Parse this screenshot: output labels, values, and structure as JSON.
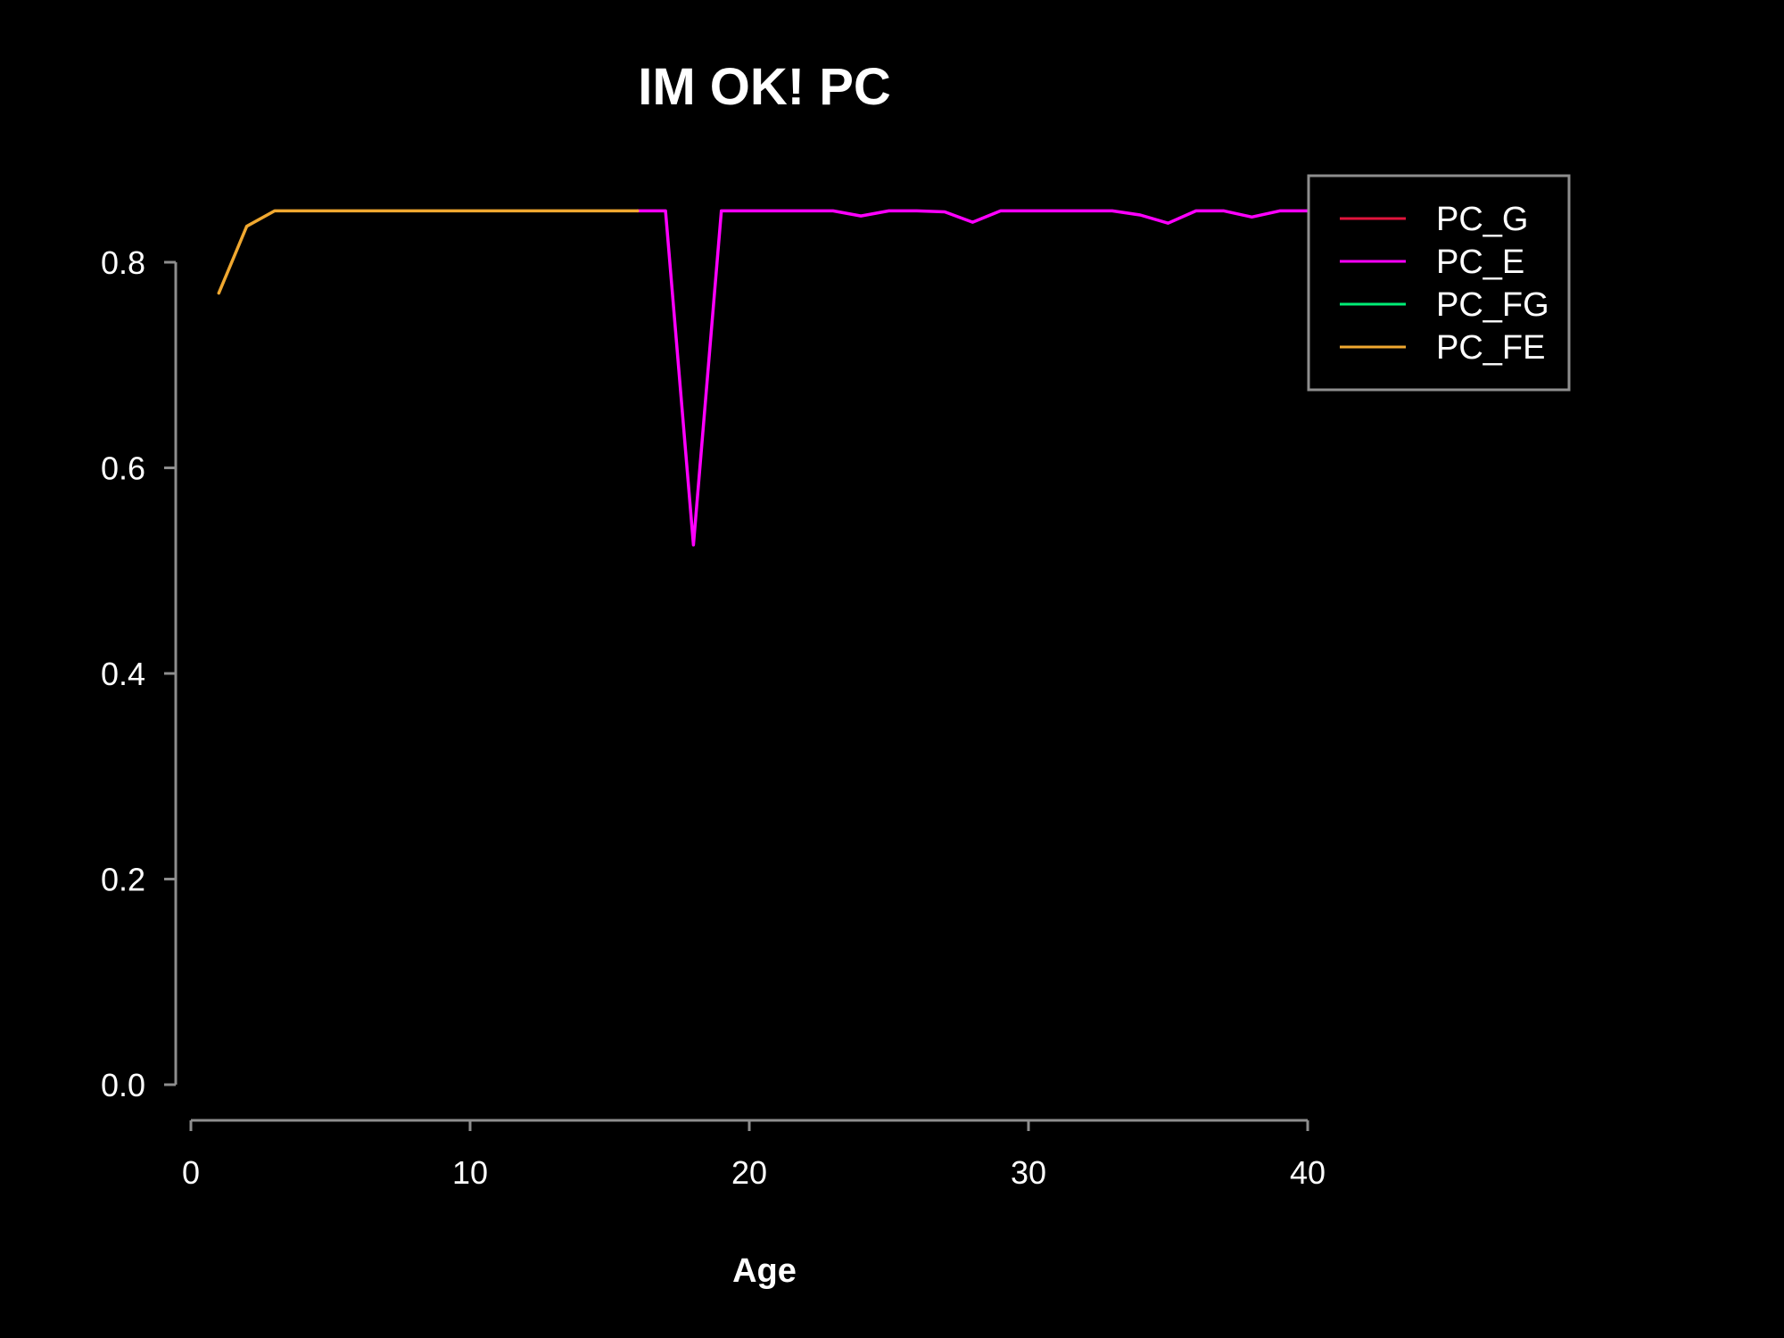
{
  "chart_data": {
    "type": "line",
    "title": "IM OK!  PC",
    "xlabel": "Age",
    "ylabel": "",
    "xlim": [
      0,
      40
    ],
    "ylim": [
      0,
      0.8
    ],
    "x_ticks": [
      "0",
      "10",
      "20",
      "30",
      "40"
    ],
    "y_ticks": [
      "0.0",
      "0.2",
      "0.4",
      "0.6",
      "0.8"
    ],
    "grid": false,
    "legend_position": "top-right",
    "background": "#000000",
    "series": [
      {
        "name": "PC_G",
        "color": "#e0143c",
        "points": []
      },
      {
        "name": "PC_E",
        "color": "#ff00ff",
        "points": [
          [
            16,
            0.85
          ],
          [
            17,
            0.85
          ],
          [
            18,
            0.525
          ],
          [
            19,
            0.85
          ],
          [
            20,
            0.85
          ],
          [
            21,
            0.85
          ],
          [
            22,
            0.85
          ],
          [
            23,
            0.85
          ],
          [
            24,
            0.845
          ],
          [
            25,
            0.85
          ],
          [
            26,
            0.85
          ],
          [
            27,
            0.849
          ],
          [
            28,
            0.839
          ],
          [
            29,
            0.85
          ],
          [
            30,
            0.85
          ],
          [
            31,
            0.85
          ],
          [
            32,
            0.85
          ],
          [
            33,
            0.85
          ],
          [
            34,
            0.846
          ],
          [
            35,
            0.838
          ],
          [
            36,
            0.85
          ],
          [
            37,
            0.85
          ],
          [
            38,
            0.844
          ],
          [
            39,
            0.85
          ],
          [
            40,
            0.85
          ]
        ]
      },
      {
        "name": "PC_FG",
        "color": "#00ee76",
        "points": []
      },
      {
        "name": "PC_FE",
        "color": "#f0a830",
        "points": [
          [
            1,
            0.77
          ],
          [
            2,
            0.835
          ],
          [
            3,
            0.85
          ],
          [
            4,
            0.85
          ],
          [
            5,
            0.85
          ],
          [
            6,
            0.85
          ],
          [
            7,
            0.85
          ],
          [
            8,
            0.85
          ],
          [
            9,
            0.85
          ],
          [
            10,
            0.85
          ],
          [
            11,
            0.85
          ],
          [
            12,
            0.85
          ],
          [
            13,
            0.85
          ],
          [
            14,
            0.85
          ],
          [
            15,
            0.85
          ],
          [
            16,
            0.85
          ]
        ]
      }
    ]
  }
}
